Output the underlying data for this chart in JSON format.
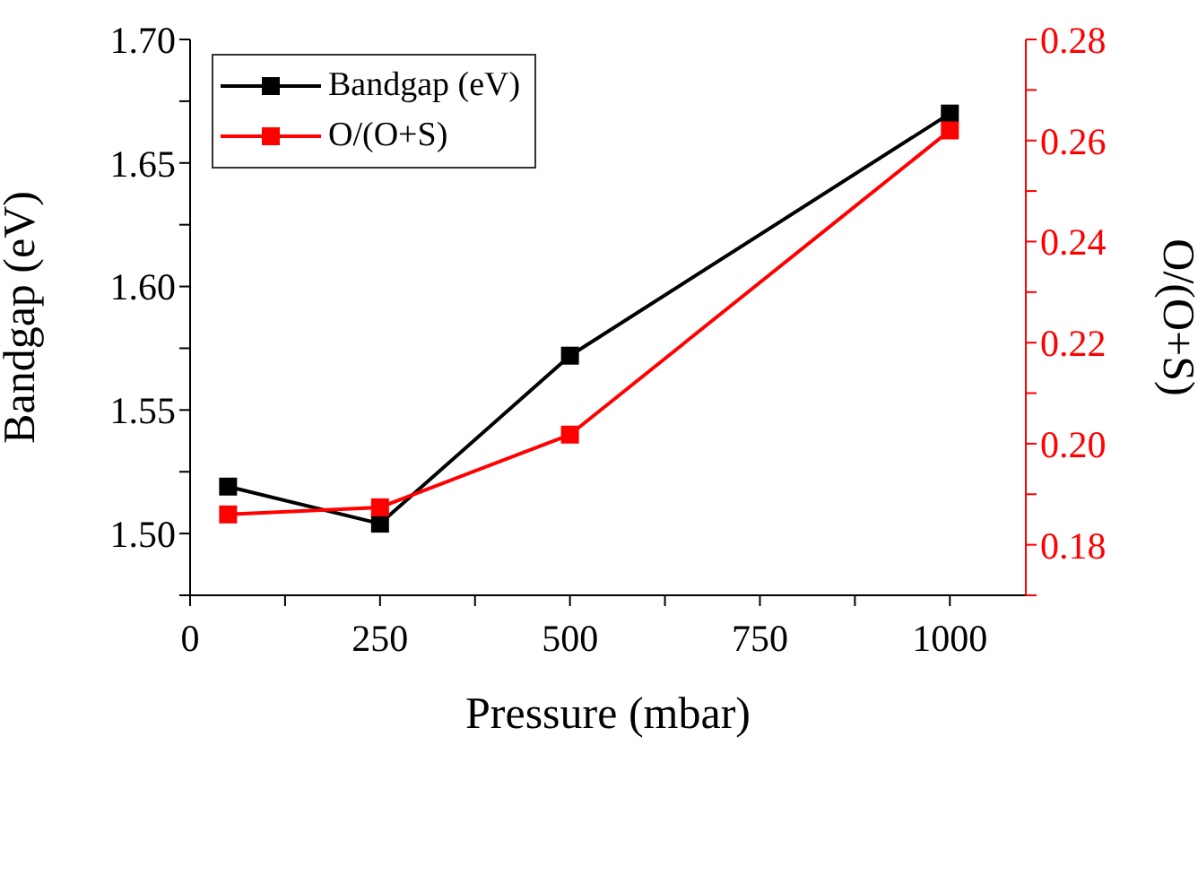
{
  "chart_data": {
    "type": "line",
    "xlabel": "Pressure (mbar)",
    "ylabel": "Bandgap (eV)",
    "y2label": "O/(O+S)",
    "x": [
      50,
      250,
      500,
      1000
    ],
    "series": [
      {
        "name": "Bandgap (eV)",
        "color": "#000000",
        "values": [
          1.519,
          1.504,
          1.572,
          1.67
        ]
      },
      {
        "name": "O/(O+S)",
        "color": "#ff0000",
        "axis": "y2",
        "values": [
          0.186,
          0.1874,
          0.2018,
          0.262
        ]
      }
    ],
    "xlim": [
      0,
      1100
    ],
    "xticks": [
      0,
      {
        "value": 125,
        "label": null
      },
      250,
      {
        "value": 375,
        "label": null
      },
      500,
      {
        "value": 625,
        "label": null
      },
      750,
      {
        "value": 875,
        "label": null
      },
      1000
    ],
    "ylim": [
      1.475,
      1.7
    ],
    "yticks": [
      {
        "value": 1.475,
        "label": null
      },
      {
        "value": 1.5,
        "label": "1.50"
      },
      {
        "value": 1.525,
        "label": null
      },
      {
        "value": 1.55,
        "label": "1.55"
      },
      {
        "value": 1.575,
        "label": null
      },
      {
        "value": 1.6,
        "label": "1.60"
      },
      {
        "value": 1.625,
        "label": null
      },
      {
        "value": 1.65,
        "label": "1.65"
      },
      {
        "value": 1.675,
        "label": null
      },
      {
        "value": 1.7,
        "label": "1.70"
      }
    ],
    "y2lim": [
      0.17,
      0.28
    ],
    "y2ticks": [
      {
        "value": 0.17,
        "label": null
      },
      {
        "value": 0.18,
        "label": "0.18"
      },
      {
        "value": 0.19,
        "label": null
      },
      {
        "value": 0.2,
        "label": "0.20"
      },
      {
        "value": 0.21,
        "label": null
      },
      {
        "value": 0.22,
        "label": "0.22"
      },
      {
        "value": 0.23,
        "label": null
      },
      {
        "value": 0.24,
        "label": "0.24"
      },
      {
        "value": 0.25,
        "label": null
      },
      {
        "value": 0.26,
        "label": "0.26"
      },
      {
        "value": 0.27,
        "label": null
      },
      {
        "value": 0.28,
        "label": "0.28"
      }
    ],
    "grid": false,
    "legend": "top left",
    "marker": "square",
    "line_style": "solid"
  }
}
